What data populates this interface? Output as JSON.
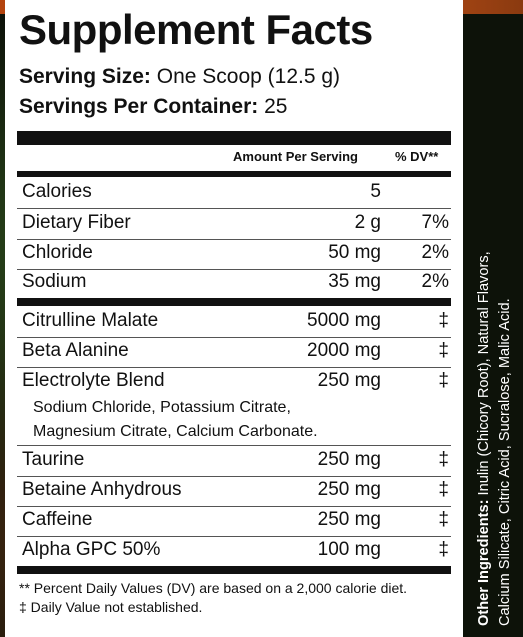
{
  "label": {
    "title": "Supplement Facts",
    "serving_size_label": "Serving Size:",
    "serving_size_value": "One Scoop (12.5 g)",
    "servings_label": "Servings Per Container:",
    "servings_value": "25",
    "header_amount": "Amount Per Serving",
    "header_dv": "% DV**",
    "rows": [
      {
        "name": "Calories",
        "amount": "5",
        "dv": ""
      },
      {
        "name": "Dietary Fiber",
        "amount": "2 g",
        "dv": "7%"
      },
      {
        "name": "Chloride",
        "amount": "50 mg",
        "dv": "2%"
      },
      {
        "name": "Sodium",
        "amount": "35 mg",
        "dv": "2%"
      },
      {
        "name": "Citrulline Malate",
        "amount": "5000 mg",
        "dv": "‡"
      },
      {
        "name": "Beta Alanine",
        "amount": "2000 mg",
        "dv": "‡"
      },
      {
        "name": "Electrolyte Blend",
        "amount": "250 mg",
        "dv": "‡"
      },
      {
        "name": "Taurine",
        "amount": "250 mg",
        "dv": "‡"
      },
      {
        "name": "Betaine Anhydrous",
        "amount": "250 mg",
        "dv": "‡"
      },
      {
        "name": "Caffeine",
        "amount": "250 mg",
        "dv": "‡"
      },
      {
        "name": "Alpha GPC 50%",
        "amount": "100 mg",
        "dv": "‡"
      }
    ],
    "blend_line1": "Sodium Chloride, Potassium Citrate,",
    "blend_line2": "Magnesium Citrate, Calcium Carbonate.",
    "footnote1": "** Percent Daily Values (DV) are based on a 2,000 calorie diet.",
    "footnote2": "‡ Daily Value not established."
  },
  "ingredients": {
    "label": "Other Ingredients:",
    "line1": "Inulin (Chicory Root), Natural Flavors,",
    "line2": "Calcium Silicate, Citric Acid, Sucralose, Malic Acid."
  }
}
